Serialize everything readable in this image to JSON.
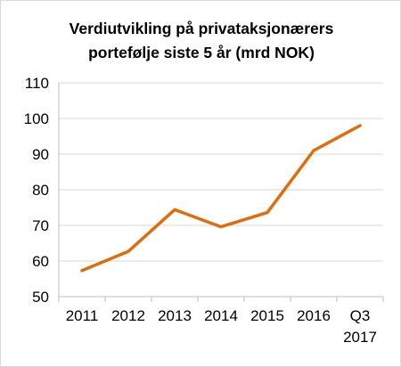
{
  "chart_data": {
    "type": "line",
    "title_lines": [
      "Verdiutvikling på privataksjonærers",
      "portefølje siste 5 år (mrd NOK)"
    ],
    "categories": [
      [
        "2011"
      ],
      [
        "2012"
      ],
      [
        "2013"
      ],
      [
        "2014"
      ],
      [
        "2015"
      ],
      [
        "2016"
      ],
      [
        "Q3",
        "2017"
      ]
    ],
    "values": [
      57.3,
      62.7,
      74.4,
      69.6,
      73.6,
      91.0,
      98.0
    ],
    "ylim": [
      50,
      110
    ],
    "yticks": [
      50,
      60,
      70,
      80,
      90,
      100,
      110
    ],
    "grid": true,
    "legend": "none",
    "xlabel": "",
    "ylabel": "",
    "colors": {
      "line": "#e36c0a",
      "grid": "#d9d9d9",
      "axis": "#bfbfbf"
    }
  }
}
